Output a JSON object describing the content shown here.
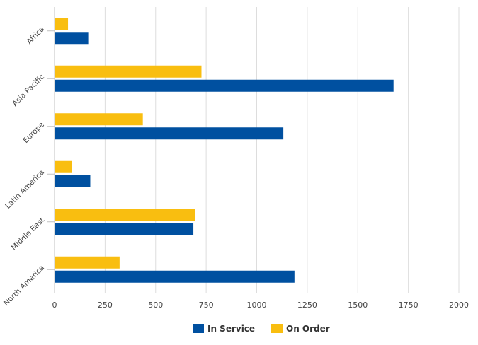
{
  "chart_data": {
    "type": "bar",
    "orientation": "horizontal",
    "categories": [
      "Africa",
      "Asia Pacific",
      "Europe",
      "Latin America",
      "Middle East",
      "North America"
    ],
    "series": [
      {
        "name": "On Order",
        "color": "#F9BE10",
        "values": [
          65,
          725,
          435,
          85,
          695,
          320
        ]
      },
      {
        "name": "In Service",
        "color": "#0050A0",
        "values": [
          165,
          1675,
          1130,
          175,
          685,
          1185
        ]
      }
    ],
    "xlim": [
      0,
      2000
    ],
    "xticks": [
      "0",
      "250",
      "500",
      "750",
      "1000",
      "1250",
      "1500",
      "1750",
      "2000"
    ],
    "grid": "vertical",
    "legend_position": "bottom",
    "legend": [
      "In Service",
      "On Order"
    ],
    "title": "",
    "xlabel": "",
    "ylabel": ""
  }
}
